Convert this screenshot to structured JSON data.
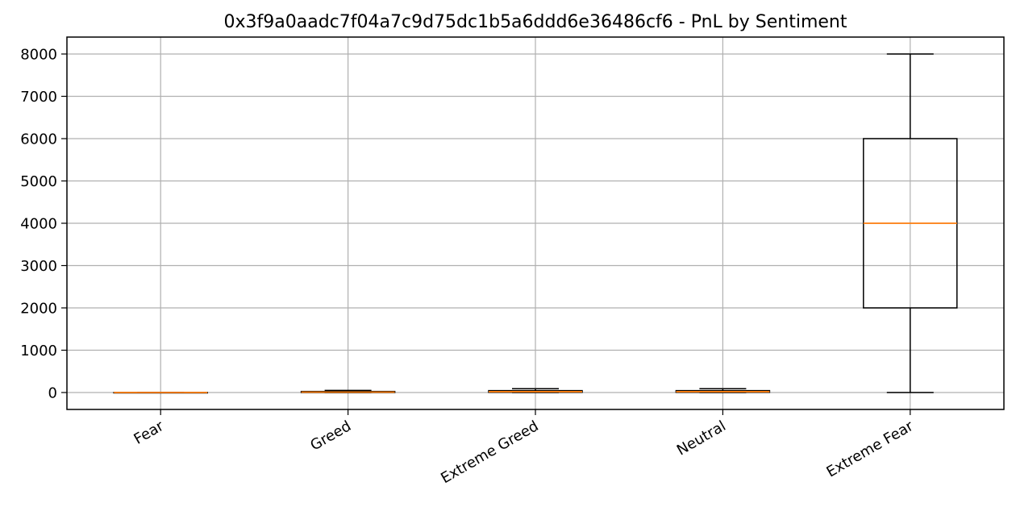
{
  "chart_data": {
    "type": "box",
    "title": "0x3f9a0aadc7f04a7c9d75dc1b5a6ddd6e36486cf6 - PnL by Sentiment",
    "xlabel": "",
    "ylabel": "",
    "categories": [
      "Fear",
      "Greed",
      "Extreme Greed",
      "Neutral",
      "Extreme Fear"
    ],
    "boxes": [
      {
        "label": "Fear",
        "whisker_low": 0,
        "q1": 0,
        "median": 0,
        "q3": 0,
        "whisker_high": 0
      },
      {
        "label": "Greed",
        "whisker_low": 0,
        "q1": 0,
        "median": 10,
        "q3": 25,
        "whisker_high": 50
      },
      {
        "label": "Extreme Greed",
        "whisker_low": 0,
        "q1": 5,
        "median": 20,
        "q3": 45,
        "whisker_high": 90
      },
      {
        "label": "Neutral",
        "whisker_low": 0,
        "q1": 5,
        "median": 20,
        "q3": 45,
        "whisker_high": 90
      },
      {
        "label": "Extreme Fear",
        "whisker_low": 0,
        "q1": 2000,
        "median": 4000,
        "q3": 6000,
        "whisker_high": 8000
      }
    ],
    "yticks": [
      0,
      1000,
      2000,
      3000,
      4000,
      5000,
      6000,
      7000,
      8000
    ],
    "ylim": [
      -400,
      8400
    ],
    "grid": true,
    "colors": {
      "box": "#000000",
      "median": "#ff7f0e",
      "grid": "#b0b0b0",
      "axes": "#000000"
    }
  }
}
